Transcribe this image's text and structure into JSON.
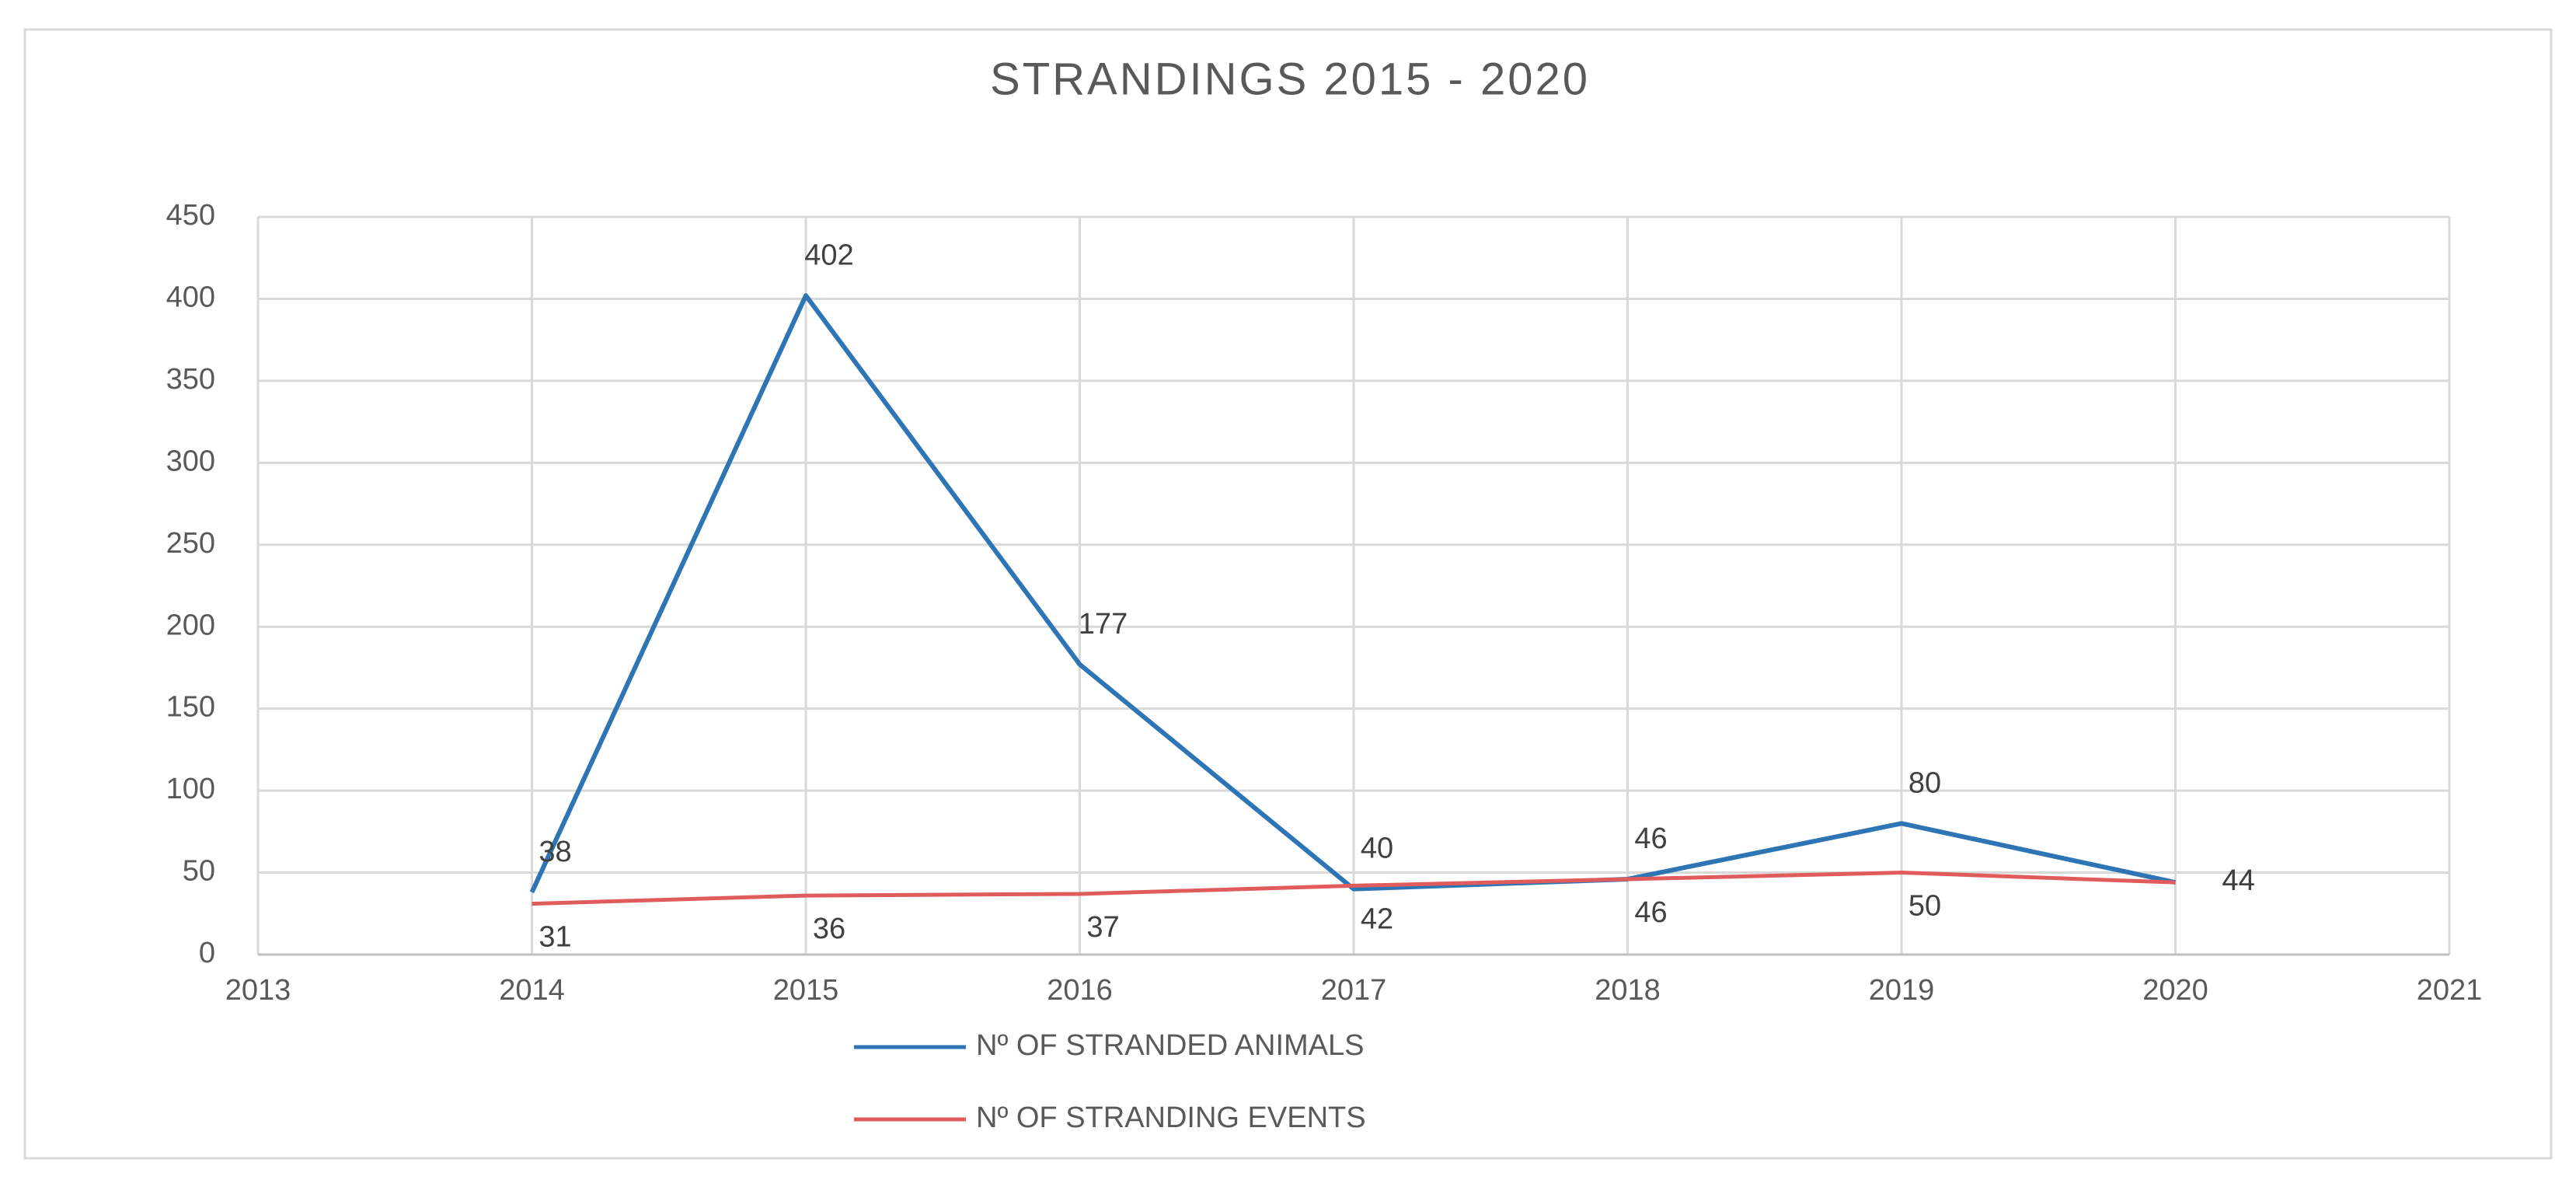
{
  "chart_data": {
    "type": "line",
    "title": "STRANDINGS  2015 - 2020",
    "x": [
      2014,
      2015,
      2016,
      2017,
      2018,
      2019,
      2020
    ],
    "series": [
      {
        "name": "Nº OF STRANDED ANIMALS",
        "color": "#2e75b6",
        "values": [
          38,
          402,
          177,
          40,
          46,
          80,
          44
        ]
      },
      {
        "name": "Nº OF STRANDING EVENTS",
        "color": "#e05c5c",
        "values": [
          31,
          36,
          37,
          42,
          46,
          50,
          44
        ]
      }
    ],
    "xlim": [
      2013,
      2021
    ],
    "xticks": [
      2013,
      2014,
      2015,
      2016,
      2017,
      2018,
      2019,
      2020,
      2021
    ],
    "ylim": [
      0,
      450
    ],
    "yticks": [
      0,
      50,
      100,
      150,
      200,
      250,
      300,
      350,
      400,
      450
    ],
    "grid": true,
    "legend": "bottom"
  }
}
